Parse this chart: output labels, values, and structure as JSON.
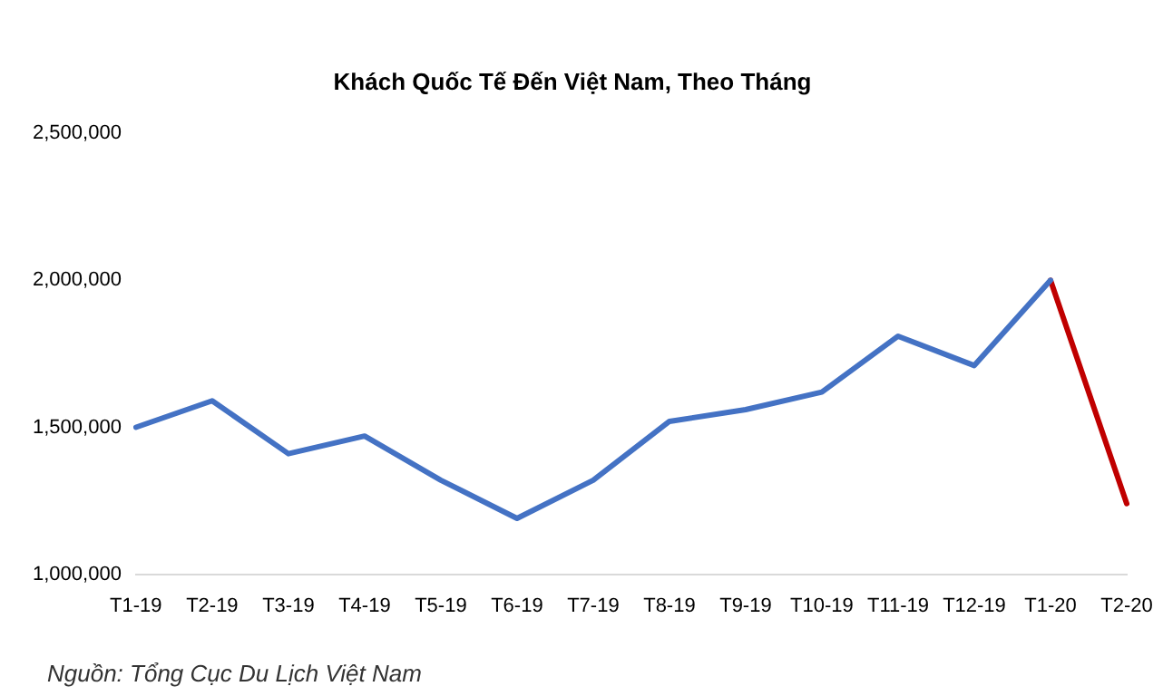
{
  "chart_data": {
    "type": "line",
    "title": "Khách Quốc Tế Đến Việt Nam, Theo Tháng",
    "categories": [
      "T1-19",
      "T2-19",
      "T3-19",
      "T4-19",
      "T5-19",
      "T6-19",
      "T7-19",
      "T8-19",
      "T9-19",
      "T10-19",
      "T11-19",
      "T12-19",
      "T1-20",
      "T2-20"
    ],
    "series": [
      {
        "color": "#4472c4",
        "values": [
          1500000,
          1590000,
          1410000,
          1470000,
          1320000,
          1190000,
          1320000,
          1520000,
          1560000,
          1620000,
          1810000,
          1710000,
          2000000,
          null
        ]
      },
      {
        "color": "#c00000",
        "values": [
          null,
          null,
          null,
          null,
          null,
          null,
          null,
          null,
          null,
          null,
          null,
          null,
          2000000,
          1240000
        ]
      }
    ],
    "ylim": [
      1000000,
      2500000
    ],
    "yticks": [
      {
        "value": 1000000,
        "label": "1,000,000"
      },
      {
        "value": 1500000,
        "label": "1,500,000"
      },
      {
        "value": 2000000,
        "label": "2,000,000"
      },
      {
        "value": 2500000,
        "label": "2,500,000"
      }
    ],
    "grid": false,
    "legend": false,
    "marker": "none",
    "line_style": "solid",
    "annotations": [
      "Nguồn: Tổng Cục Du Lịch Việt Nam"
    ]
  }
}
